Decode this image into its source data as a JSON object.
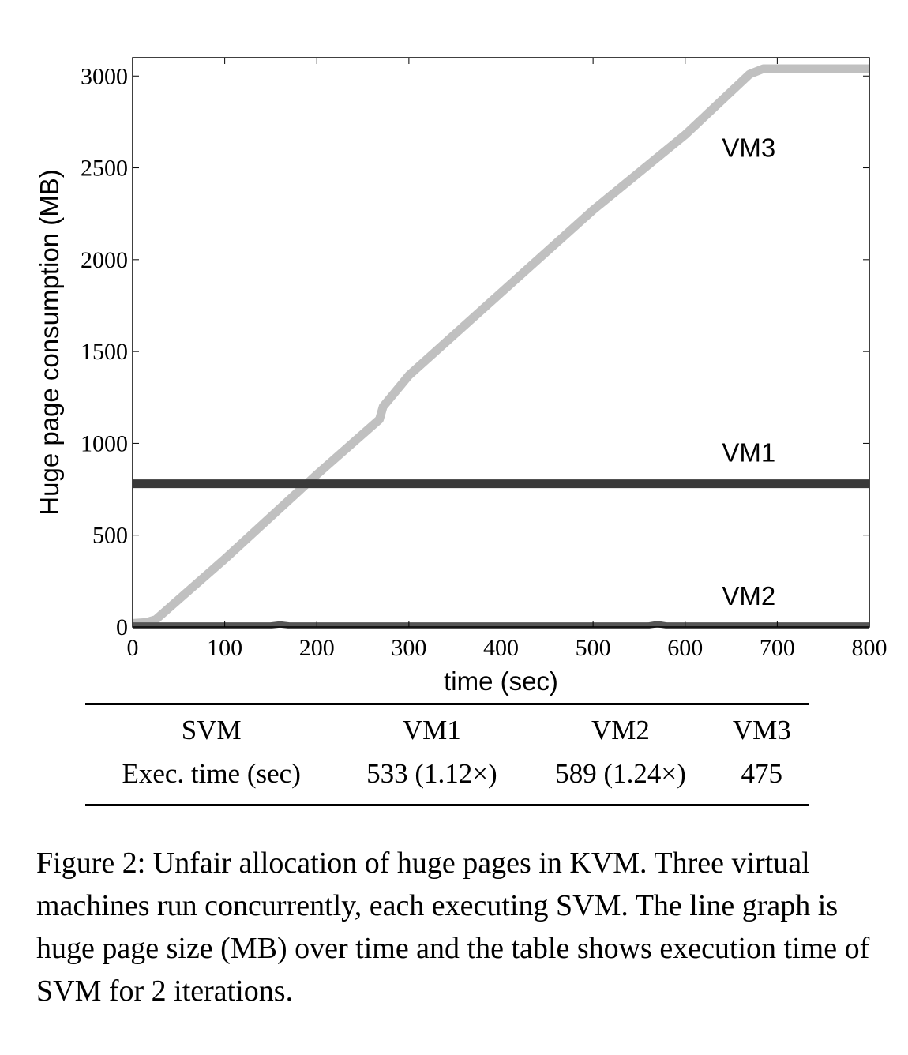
{
  "chart_data": {
    "type": "line",
    "xlabel": "time (sec)",
    "ylabel": "Huge page consumption (MB)",
    "xlim": [
      0,
      800
    ],
    "ylim": [
      0,
      3100
    ],
    "xticks": [
      0,
      100,
      200,
      300,
      400,
      500,
      600,
      700,
      800
    ],
    "yticks": [
      0,
      500,
      1000,
      1500,
      2000,
      2500,
      3000
    ],
    "series": [
      {
        "name": "VM1",
        "color": "#3a3a3a",
        "x": [
          0,
          800
        ],
        "y": [
          780,
          780
        ]
      },
      {
        "name": "VM2",
        "color": "#555555",
        "x": [
          0,
          150,
          160,
          170,
          560,
          570,
          580,
          800
        ],
        "y": [
          8,
          8,
          14,
          8,
          8,
          16,
          8,
          8
        ]
      },
      {
        "name": "VM3",
        "color": "#c0c0c0",
        "x": [
          0,
          15,
          25,
          100,
          200,
          268,
          272,
          300,
          400,
          500,
          600,
          670,
          685,
          800
        ],
        "y": [
          20,
          25,
          40,
          370,
          830,
          1130,
          1200,
          1370,
          1820,
          2270,
          2680,
          3010,
          3040,
          3040
        ]
      }
    ],
    "annotations": [
      {
        "text": "VM3",
        "x": 640,
        "y": 2560
      },
      {
        "text": "VM1",
        "x": 640,
        "y": 900
      },
      {
        "text": "VM2",
        "x": 640,
        "y": 120
      }
    ]
  },
  "table": {
    "headers": [
      "SVM",
      "VM1",
      "VM2",
      "VM3"
    ],
    "rows": [
      [
        "Exec. time (sec)",
        "533 (1.12×)",
        "589 (1.24×)",
        "475"
      ]
    ]
  },
  "caption": "Figure 2: Unfair allocation of huge pages in KVM. Three virtual machines run concurrently, each executing SVM. The line graph is huge page size (MB) over time and the table shows execution time of SVM for 2 iterations."
}
